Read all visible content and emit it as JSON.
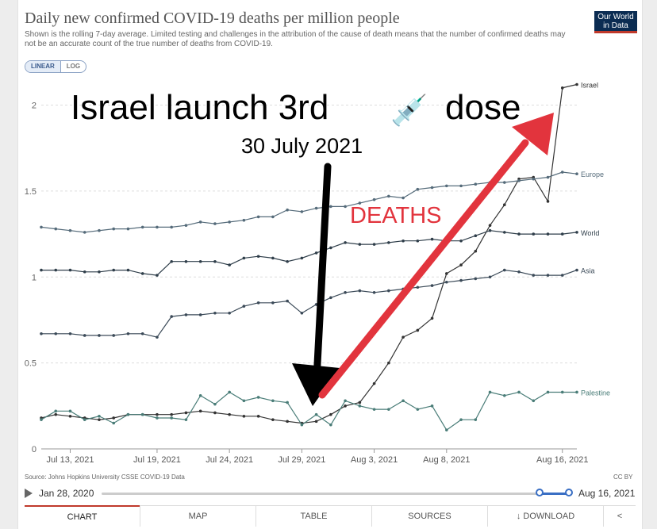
{
  "header": {
    "title": "Daily new confirmed COVID-19 deaths per million people",
    "subtitle": "Shown is the rolling 7-day average. Limited testing and challenges in the attribution of the cause of death means that the number of confirmed deaths may not be an accurate count of the true number of deaths from COVID-19.",
    "logo_line1": "Our World",
    "logo_line2": "in Data"
  },
  "scale_toggle": {
    "linear": "LINEAR",
    "log": "LOG"
  },
  "colors": {
    "israel": "#333333",
    "europe": "#556b7a",
    "world": "#2f3e4a",
    "asia": "#3b4a58",
    "palestine": "#4a7d78",
    "arrow": "#e2343d",
    "annotation_black": "#000000"
  },
  "chart_data": {
    "type": "line",
    "x": [
      "2021-07-11",
      "2021-07-12",
      "2021-07-13",
      "2021-07-14",
      "2021-07-15",
      "2021-07-16",
      "2021-07-17",
      "2021-07-18",
      "2021-07-19",
      "2021-07-20",
      "2021-07-21",
      "2021-07-22",
      "2021-07-23",
      "2021-07-24",
      "2021-07-25",
      "2021-07-26",
      "2021-07-27",
      "2021-07-28",
      "2021-07-29",
      "2021-07-30",
      "2021-07-31",
      "2021-08-01",
      "2021-08-02",
      "2021-08-03",
      "2021-08-04",
      "2021-08-05",
      "2021-08-06",
      "2021-08-07",
      "2021-08-08",
      "2021-08-09",
      "2021-08-10",
      "2021-08-11",
      "2021-08-12",
      "2021-08-13",
      "2021-08-14",
      "2021-08-15",
      "2021-08-16",
      "2021-08-17"
    ],
    "xticks": [
      "Jul 13, 2021",
      "Jul 19, 2021",
      "Jul 24, 2021",
      "Jul 29, 2021",
      "Aug 3, 2021",
      "Aug 8, 2021",
      "Aug 16, 2021"
    ],
    "xtick_dates": [
      "2021-07-13",
      "2021-07-19",
      "2021-07-24",
      "2021-07-29",
      "2021-08-03",
      "2021-08-08",
      "2021-08-16"
    ],
    "ylim": [
      0,
      2.15
    ],
    "yticks": [
      0,
      0.5,
      1,
      1.5,
      2
    ],
    "ytick_labels": [
      "0",
      "0.5",
      "1",
      "1.5",
      "2"
    ],
    "grid": true,
    "series": [
      {
        "name": "Israel",
        "key": "israel",
        "values": [
          0.18,
          0.2,
          0.19,
          0.18,
          0.17,
          0.18,
          0.2,
          0.2,
          0.2,
          0.2,
          0.21,
          0.22,
          0.21,
          0.2,
          0.19,
          0.19,
          0.17,
          0.16,
          0.15,
          0.16,
          0.2,
          0.25,
          0.27,
          0.38,
          0.5,
          0.65,
          0.69,
          0.76,
          1.02,
          1.07,
          1.15,
          1.3,
          1.42,
          1.57,
          1.58,
          1.44,
          2.1,
          2.12
        ]
      },
      {
        "name": "Europe",
        "key": "europe",
        "values": [
          1.29,
          1.28,
          1.27,
          1.26,
          1.27,
          1.28,
          1.28,
          1.29,
          1.29,
          1.29,
          1.3,
          1.32,
          1.31,
          1.32,
          1.33,
          1.35,
          1.35,
          1.39,
          1.38,
          1.4,
          1.41,
          1.41,
          1.43,
          1.45,
          1.47,
          1.46,
          1.51,
          1.52,
          1.53,
          1.53,
          1.54,
          1.55,
          1.55,
          1.56,
          1.57,
          1.58,
          1.61,
          1.6
        ]
      },
      {
        "name": "World",
        "key": "world",
        "values": [
          1.04,
          1.04,
          1.04,
          1.03,
          1.03,
          1.04,
          1.04,
          1.02,
          1.01,
          1.09,
          1.09,
          1.09,
          1.09,
          1.07,
          1.11,
          1.12,
          1.11,
          1.09,
          1.11,
          1.14,
          1.17,
          1.2,
          1.19,
          1.19,
          1.2,
          1.21,
          1.21,
          1.22,
          1.21,
          1.21,
          1.24,
          1.27,
          1.26,
          1.25,
          1.25,
          1.25,
          1.25,
          1.26
        ]
      },
      {
        "name": "Asia",
        "key": "asia",
        "values": [
          0.67,
          0.67,
          0.67,
          0.66,
          0.66,
          0.66,
          0.67,
          0.67,
          0.65,
          0.77,
          0.78,
          0.78,
          0.79,
          0.79,
          0.83,
          0.85,
          0.85,
          0.86,
          0.79,
          0.84,
          0.88,
          0.91,
          0.92,
          0.91,
          0.92,
          0.93,
          0.94,
          0.95,
          0.97,
          0.98,
          0.99,
          1.0,
          1.04,
          1.03,
          1.01,
          1.01,
          1.01,
          1.04
        ]
      },
      {
        "name": "Palestine",
        "key": "palestine",
        "values": [
          0.17,
          0.22,
          0.22,
          0.17,
          0.19,
          0.15,
          0.2,
          0.2,
          0.18,
          0.18,
          0.17,
          0.31,
          0.26,
          0.33,
          0.28,
          0.3,
          0.28,
          0.27,
          0.14,
          0.2,
          0.14,
          0.28,
          0.25,
          0.23,
          0.23,
          0.28,
          0.23,
          0.25,
          0.11,
          0.17,
          0.17,
          0.33,
          0.31,
          0.33,
          0.28,
          0.33,
          0.33,
          0.33
        ]
      }
    ]
  },
  "annotations": {
    "headline_prefix": "Israel launch 3rd",
    "headline_emoji": "💉",
    "headline_suffix": "dose",
    "date": "30 July 2021",
    "deaths": "DEATHS"
  },
  "footer": {
    "source": "Source: Johns Hopkins University CSSE COVID-19 Data",
    "license": "CC BY"
  },
  "timeline": {
    "start_date": "Jan 28, 2020",
    "end_date": "Aug 16, 2021"
  },
  "tabs": [
    "CHART",
    "MAP",
    "TABLE",
    "SOURCES",
    "DOWNLOAD"
  ],
  "download_icon": "↓",
  "share_icon": "share-icon"
}
